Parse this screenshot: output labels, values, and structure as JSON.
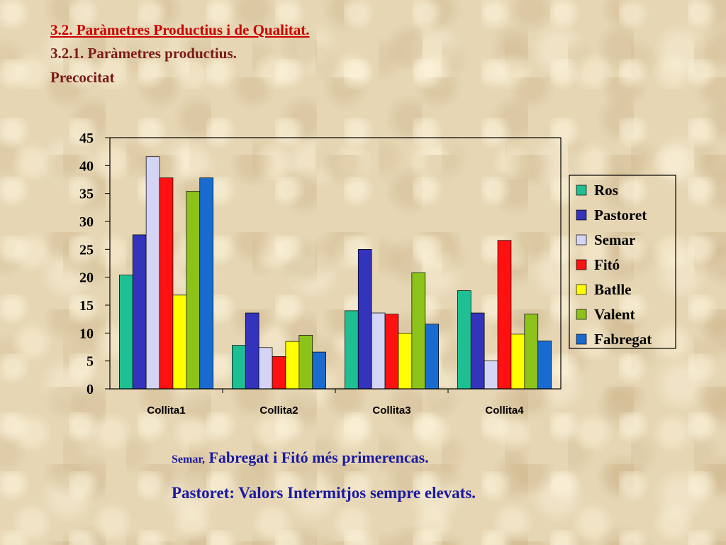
{
  "slide": {
    "title": "3.2. Paràmetres Productius i de Qualitat.",
    "subtitle": "3.2.1. Paràmetres productius.",
    "section": "Precocitat"
  },
  "notes": {
    "line1_small": "Semar,",
    "line1_rest": " Fabregat i Fitó més primerencas.",
    "line2": "Pastoret: Valors  Intermitjos sempre elevats."
  },
  "chart_data": {
    "type": "bar",
    "categories": [
      "Collita1",
      "Collita2",
      "Collita3",
      "Collita4"
    ],
    "series": [
      {
        "name": "Ros",
        "color": "#1fbf94",
        "values": [
          20.4,
          7.8,
          14.0,
          17.6
        ]
      },
      {
        "name": "Pastoret",
        "color": "#3333bb",
        "values": [
          27.6,
          13.6,
          25.0,
          13.6
        ]
      },
      {
        "name": "Semar",
        "color": "#d4d4f4",
        "values": [
          41.6,
          7.4,
          13.6,
          5.0
        ]
      },
      {
        "name": "Fitó",
        "color": "#ff1111",
        "values": [
          37.8,
          5.8,
          13.4,
          26.6
        ]
      },
      {
        "name": "Batlle",
        "color": "#ffff00",
        "values": [
          16.8,
          8.5,
          10.0,
          9.8
        ]
      },
      {
        "name": "Valent",
        "color": "#8dc21a",
        "values": [
          35.4,
          9.6,
          20.8,
          13.4
        ]
      },
      {
        "name": "Fabregat",
        "color": "#1a6bd0",
        "values": [
          37.8,
          6.6,
          11.6,
          8.6
        ]
      }
    ],
    "yticks": [
      "0",
      "5",
      "10",
      "15",
      "20",
      "25",
      "30",
      "35",
      "40",
      "45"
    ],
    "ylim": [
      0,
      45
    ],
    "xlabel": "",
    "ylabel": "",
    "legend_position": "right",
    "grid": false
  }
}
